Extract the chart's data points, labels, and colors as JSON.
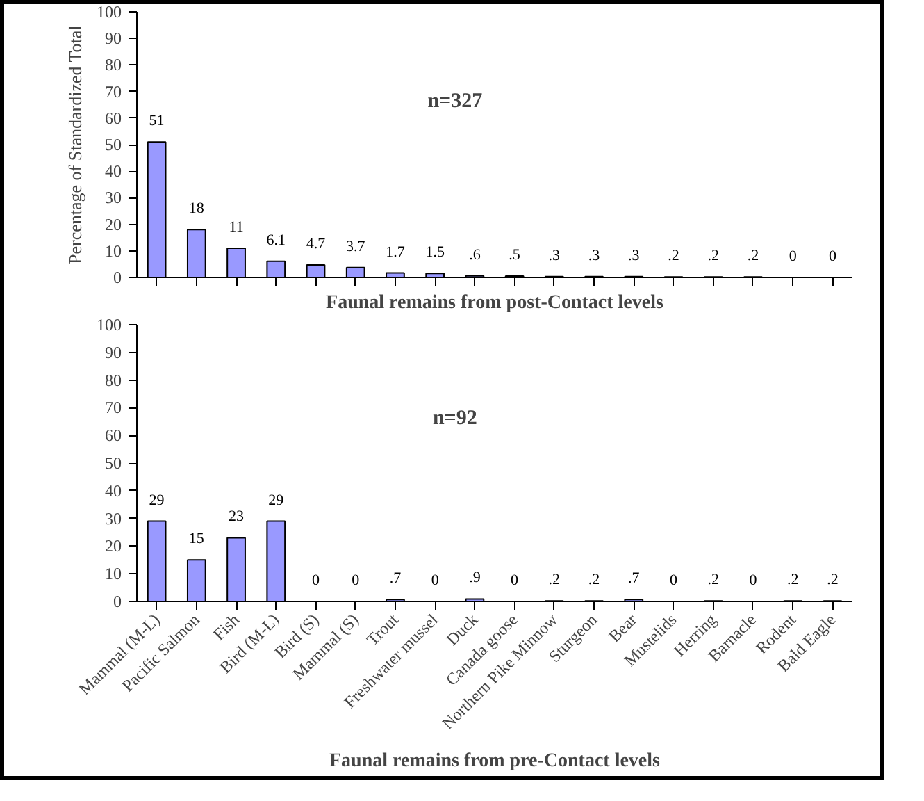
{
  "chart_data": [
    {
      "type": "bar",
      "ylabel": "Percentage of Standardized Total",
      "xlabel": "Faunal remains from post-Contact levels",
      "annotations": [
        "n=327"
      ],
      "categories": [
        null,
        null,
        null,
        null,
        null,
        null,
        null,
        null,
        null,
        null,
        null,
        null,
        null,
        null,
        null,
        null,
        null,
        null
      ],
      "values": [
        51,
        18,
        11,
        6.1,
        4.7,
        3.7,
        1.7,
        1.5,
        0.6,
        0.5,
        0.3,
        0.3,
        0.3,
        0.2,
        0.2,
        0.2,
        0,
        0
      ],
      "value_labels": [
        "51",
        "18",
        "11",
        "6.1",
        "4.7",
        "3.7",
        "1.7",
        "1.5",
        ".6",
        ".5",
        ".3",
        ".3",
        ".3",
        ".2",
        ".2",
        ".2",
        "0",
        "0"
      ],
      "color": "#9999ff",
      "ylim": [
        0,
        100
      ],
      "yticks": [
        0,
        10,
        20,
        30,
        40,
        50,
        60,
        70,
        80,
        90,
        100
      ],
      "tick_labels": "y",
      "grid": false
    },
    {
      "type": "bar",
      "xlabel": "Faunal remains from pre-Contact levels",
      "annotations": [
        "n=92"
      ],
      "categories": [
        "Mammal (M-L)",
        "Pacific Salmon",
        "Fish",
        "Bird (M-L)",
        "Bird (S)",
        "Mammal (S)",
        "Trout",
        "Freshwater mussel",
        "Duck",
        "Canada goose",
        "Northern Pike Minnow",
        "Sturgeon",
        "Bear",
        "Mustelids",
        "Herring",
        "Barnacle",
        "Rodent",
        "Bald Eagle"
      ],
      "values": [
        29,
        15,
        23,
        29,
        0,
        0,
        0.7,
        0,
        0.9,
        0,
        0.2,
        0.2,
        0.7,
        0,
        0.2,
        0,
        0.2,
        0.2
      ],
      "value_labels": [
        "29",
        "15",
        "23",
        "29",
        "0",
        "0",
        ".7",
        "0",
        ".9",
        "0",
        ".2",
        ".2",
        ".7",
        "0",
        ".2",
        "0",
        ".2",
        ".2"
      ],
      "color": "#9999ff",
      "ylim": [
        0,
        100
      ],
      "yticks": [
        0,
        10,
        20,
        30,
        40,
        50,
        60,
        70,
        80,
        90,
        100
      ],
      "grid": false
    }
  ]
}
